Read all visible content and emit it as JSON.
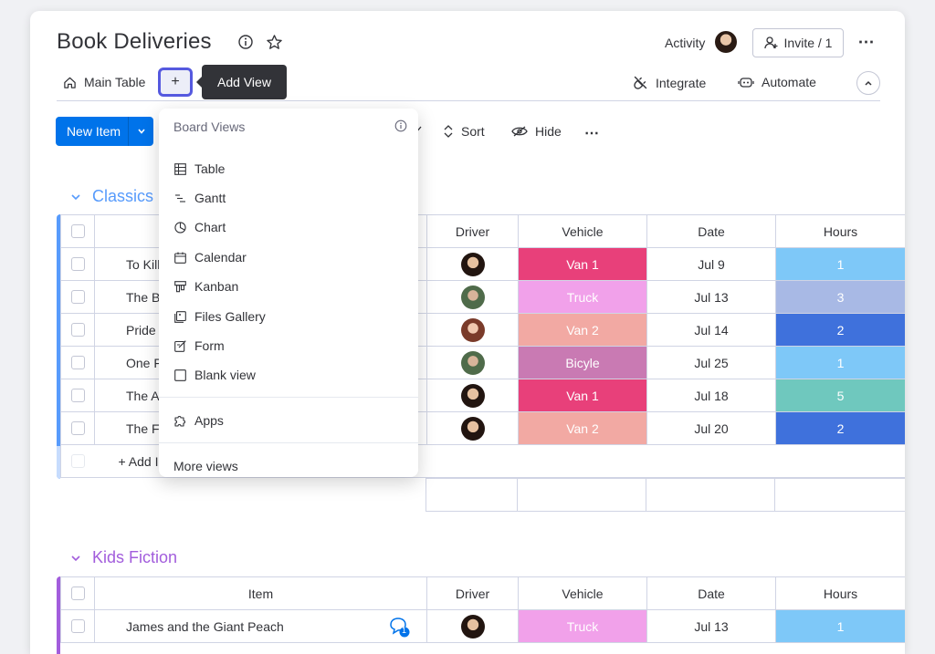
{
  "header": {
    "title": "Book Deliveries",
    "activity_label": "Activity",
    "invite_label": "Invite / 1",
    "more_label": "⋯"
  },
  "tabs": {
    "main_table": "Main Table",
    "add_view": "+",
    "tooltip": "Add View",
    "integrate": "Integrate",
    "automate": "Automate",
    "collapse": "^"
  },
  "toolbar": {
    "new_item": "New Item",
    "sort": "Sort",
    "hide": "Hide",
    "more": "⋯"
  },
  "views_menu": {
    "header": "Board Views",
    "items": [
      {
        "label": "Table",
        "icon": "table-icon"
      },
      {
        "label": "Gantt",
        "icon": "gantt-icon"
      },
      {
        "label": "Chart",
        "icon": "chart-icon"
      },
      {
        "label": "Calendar",
        "icon": "calendar-icon"
      },
      {
        "label": "Kanban",
        "icon": "kanban-icon"
      },
      {
        "label": "Files Gallery",
        "icon": "files-gallery-icon"
      },
      {
        "label": "Form",
        "icon": "form-icon"
      },
      {
        "label": "Blank view",
        "icon": "blank-view-icon"
      }
    ],
    "apps": "Apps",
    "more_views": "More views"
  },
  "columns": {
    "item": "Item",
    "driver": "Driver",
    "vehicle": "Vehicle",
    "date": "Date",
    "hours": "Hours"
  },
  "groups": [
    {
      "title": "Classics",
      "color": "#579bfc",
      "add_item": "+ Add I",
      "rows": [
        {
          "item": "To Kill",
          "vehicle": "Van 1",
          "vehicle_color": "#e2445c",
          "date": "Jul 9",
          "hours": "1",
          "hours_color": "#7ec8f8",
          "driver": "av-a"
        },
        {
          "item": "The Bl",
          "vehicle": "Truck",
          "vehicle_color": "#f5a3e7",
          "date": "Jul 13",
          "hours": "3",
          "hours_color": "#a8b9e5",
          "driver": "av-b"
        },
        {
          "item": "Pride a",
          "vehicle": "Van 2",
          "vehicle_color": "#f2a9a3",
          "date": "Jul 14",
          "hours": "2",
          "hours_color": "#3f71dc",
          "driver": "av-c"
        },
        {
          "item": "One F",
          "vehicle": "Bicyle",
          "vehicle_color": "#c97ab3",
          "date": "Jul 25",
          "hours": "1",
          "hours_color": "#7ec8f8",
          "driver": "av-b"
        },
        {
          "item": "The A",
          "vehicle": "Van 1",
          "vehicle_color": "#e2445c",
          "date": "Jul 18",
          "hours": "5",
          "hours_color": "#6fc8be",
          "driver": "av-a"
        },
        {
          "item": "The Fo",
          "vehicle": "Van 2",
          "vehicle_color": "#f2a9a3",
          "date": "Jul 20",
          "hours": "2",
          "hours_color": "#3f71dc",
          "driver": "av-a"
        }
      ]
    },
    {
      "title": "Kids Fiction",
      "color": "#a25ddc",
      "rows": [
        {
          "item": "James and the Giant Peach",
          "vehicle": "Truck",
          "vehicle_color": "#f5a3e7",
          "date": "Jul 13",
          "hours": "1",
          "hours_color": "#7ec8f8",
          "driver": "av-a",
          "updates": "1"
        }
      ]
    }
  ]
}
